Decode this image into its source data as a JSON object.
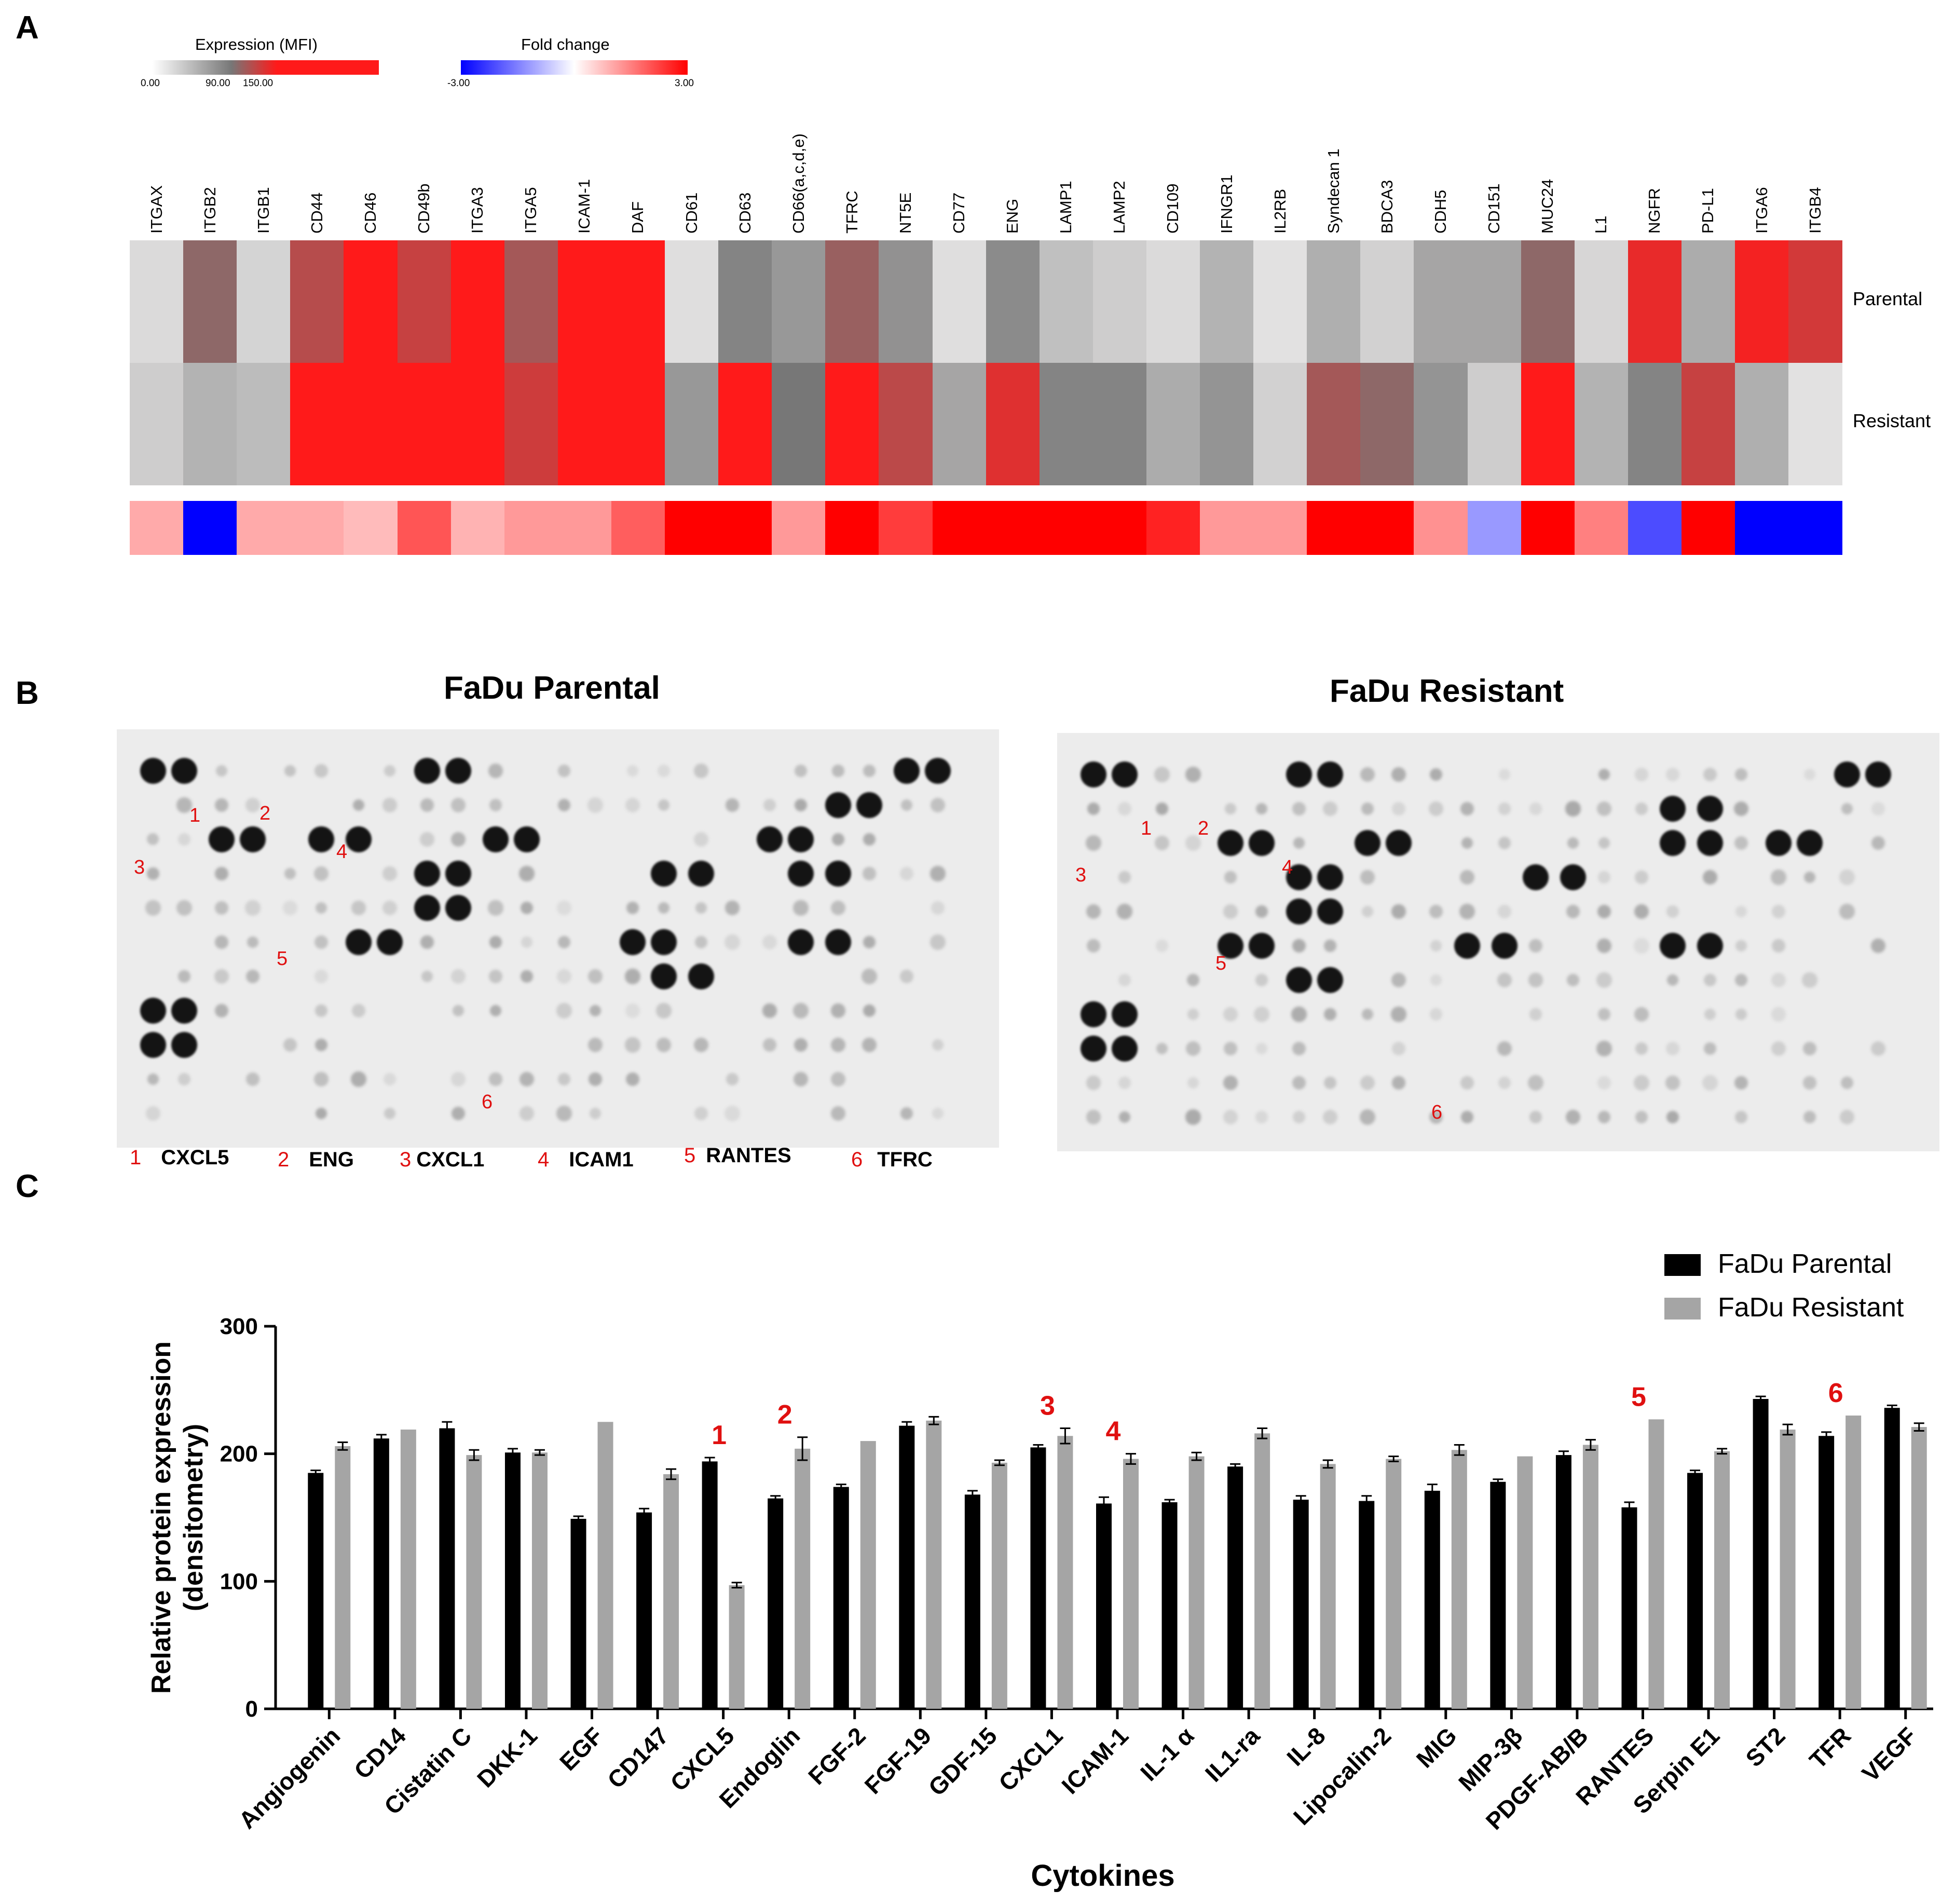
{
  "panels": {
    "a": "A",
    "b": "B",
    "c": "C"
  },
  "expression_legend": {
    "title": "Expression (MFI)",
    "ticks": [
      "0.00",
      "90.00",
      "150.00"
    ],
    "colors": [
      "#ffffff",
      "#777777",
      "#ff1a1a"
    ]
  },
  "fold_legend": {
    "title": "Fold change",
    "ticks": [
      "-3.00",
      "3.00"
    ],
    "colors": [
      "#0000ff",
      "#ffffff",
      "#ff0000"
    ]
  },
  "heatmap": {
    "rows": [
      "Parental",
      "Resistant"
    ],
    "markers": [
      {
        "name": "ITGAX",
        "parental": 15,
        "resistant": 25,
        "fold": 1.0
      },
      {
        "name": "ITGB2",
        "parental": 100,
        "resistant": 45,
        "fold": -3.0
      },
      {
        "name": "ITGB1",
        "parental": 20,
        "resistant": 38,
        "fold": 1.0
      },
      {
        "name": "CD44",
        "parental": 118,
        "resistant": 150,
        "fold": 1.0
      },
      {
        "name": "CD46",
        "parental": 150,
        "resistant": 150,
        "fold": 0.8
      },
      {
        "name": "CD49b",
        "parental": 125,
        "resistant": 150,
        "fold": 2.0
      },
      {
        "name": "ITGA3",
        "parental": 150,
        "resistant": 150,
        "fold": 0.9
      },
      {
        "name": "ITGA5",
        "parental": 110,
        "resistant": 128,
        "fold": 1.2
      },
      {
        "name": "ICAM-1",
        "parental": 150,
        "resistant": 150,
        "fold": 1.2
      },
      {
        "name": "DAF",
        "parental": 150,
        "resistant": 150,
        "fold": 1.9
      },
      {
        "name": "CD61",
        "parental": 12,
        "resistant": 65,
        "fold": 3.0
      },
      {
        "name": "CD63",
        "parental": 80,
        "resistant": 150,
        "fold": 3.0
      },
      {
        "name": "CD66(a,c,d,e)",
        "parental": 65,
        "resistant": 90,
        "fold": 1.2
      },
      {
        "name": "TFRC",
        "parental": 105,
        "resistant": 150,
        "fold": 3.0
      },
      {
        "name": "NT5E",
        "parental": 70,
        "resistant": 120,
        "fold": 2.3
      },
      {
        "name": "CD77",
        "parental": 12,
        "resistant": 55,
        "fold": 3.0
      },
      {
        "name": "ENG",
        "parental": 75,
        "resistant": 136,
        "fold": 3.0
      },
      {
        "name": "LAMP1",
        "parental": 35,
        "resistant": 80,
        "fold": 3.0
      },
      {
        "name": "LAMP2",
        "parental": 25,
        "resistant": 80,
        "fold": 3.0
      },
      {
        "name": "CD109",
        "parental": 15,
        "resistant": 50,
        "fold": 2.6
      },
      {
        "name": "IFNGR1",
        "parental": 45,
        "resistant": 68,
        "fold": 1.2
      },
      {
        "name": "IL2RB",
        "parental": 10,
        "resistant": 22,
        "fold": 1.2
      },
      {
        "name": "Syndecan 1",
        "parental": 48,
        "resistant": 110,
        "fold": 3.0
      },
      {
        "name": "BDCA3",
        "parental": 22,
        "resistant": 100,
        "fold": 3.0
      },
      {
        "name": "CDH5",
        "parental": 55,
        "resistant": 68,
        "fold": 1.3
      },
      {
        "name": "CD151",
        "parental": 55,
        "resistant": 25,
        "fold": -1.2
      },
      {
        "name": "MUC24",
        "parental": 100,
        "resistant": 150,
        "fold": 3.0
      },
      {
        "name": "L1",
        "parental": 18,
        "resistant": 45,
        "fold": 1.5
      },
      {
        "name": "NGFR",
        "parental": 140,
        "resistant": 80,
        "fold": -2.1
      },
      {
        "name": "PD-L1",
        "parental": 50,
        "resistant": 125,
        "fold": 3.0
      },
      {
        "name": "ITGA6",
        "parental": 145,
        "resistant": 48,
        "fold": -3.0
      },
      {
        "name": "ITGB4",
        "parental": 130,
        "resistant": 10,
        "fold": -3.0
      }
    ]
  },
  "blots": {
    "left_title": "FaDu Parental",
    "right_title": "FaDu Resistant",
    "annotations": [
      "1",
      "2",
      "3",
      "4",
      "5",
      "6"
    ],
    "key": [
      {
        "num": "1",
        "name": "CXCL5"
      },
      {
        "num": "2",
        "name": "ENG"
      },
      {
        "num": "3",
        "name": "CXCL1"
      },
      {
        "num": "4",
        "name": "ICAM1"
      },
      {
        "num": "5",
        "name": "RANTES"
      },
      {
        "num": "6",
        "name": "TFRC"
      }
    ]
  },
  "chart_data": {
    "type": "bar",
    "title": "",
    "xlabel": "Cytokines",
    "ylabel": "Relative protein expression (densitometry)",
    "ylabel_lines": [
      "Relative protein expression",
      "(densitometry)"
    ],
    "ylim": [
      0,
      300
    ],
    "yticks": [
      0,
      100,
      200,
      300
    ],
    "legend_position": "top-right",
    "categories": [
      "Angiogenin",
      "CD14",
      "Cistatin C",
      "DKK-1",
      "EGF",
      "CD147",
      "CXCL5",
      "Endoglin",
      "FGF-2",
      "FGF-19",
      "GDF-15",
      "CXCL1",
      "ICAM-1",
      "IL-1 α",
      "IL1-ra",
      "IL-8",
      "Lipocalin-2",
      "MIG",
      "MIP-3β",
      "PDGF-AB/B",
      "RANTES",
      "Serpin E1",
      "ST2",
      "TFR",
      "VEGF"
    ],
    "series": [
      {
        "name": "FaDu Parental",
        "color": "#000000",
        "values": [
          185,
          212,
          220,
          201,
          149,
          154,
          194,
          165,
          174,
          222,
          168,
          205,
          161,
          162,
          190,
          164,
          163,
          171,
          178,
          199,
          158,
          185,
          243,
          214,
          236
        ],
        "errors": [
          2,
          3,
          5,
          3,
          2,
          3,
          3,
          2,
          2,
          3,
          3,
          2,
          5,
          2,
          2,
          3,
          4,
          5,
          2,
          3,
          4,
          2,
          2,
          3,
          2
        ]
      },
      {
        "name": "FaDu Resistant",
        "color": "#a5a5a5",
        "values": [
          206,
          219,
          199,
          201,
          225,
          184,
          97,
          204,
          210,
          226,
          193,
          214,
          196,
          198,
          216,
          192,
          196,
          203,
          198,
          207,
          227,
          202,
          219,
          230,
          221
        ],
        "errors": [
          3,
          0,
          4,
          2,
          0,
          4,
          2,
          9,
          0,
          3,
          2,
          6,
          4,
          3,
          4,
          3,
          2,
          4,
          0,
          4,
          0,
          2,
          4,
          0,
          3
        ]
      }
    ],
    "annotations": [
      {
        "label": "1",
        "category": "CXCL5"
      },
      {
        "label": "2",
        "category": "Endoglin"
      },
      {
        "label": "3",
        "category": "CXCL1"
      },
      {
        "label": "4",
        "category": "ICAM-1"
      },
      {
        "label": "5",
        "category": "RANTES"
      },
      {
        "label": "6",
        "category": "TFR"
      }
    ]
  }
}
